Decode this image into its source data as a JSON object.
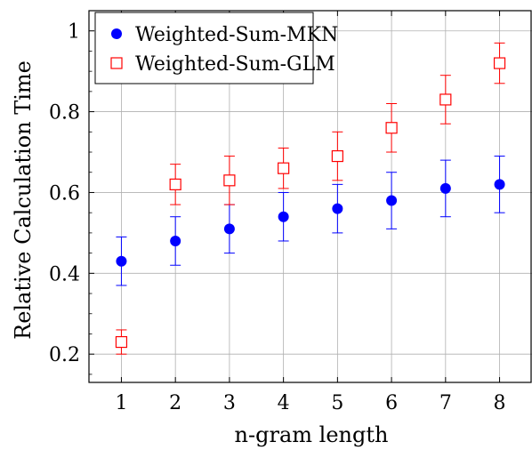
{
  "chart_data": {
    "type": "scatter",
    "xlabel": "n-gram length",
    "ylabel": "Relative Calculation Time",
    "xlim": [
      0.4,
      8.6
    ],
    "ylim": [
      0.13,
      1.05
    ],
    "x_ticks": [
      1,
      2,
      3,
      4,
      5,
      6,
      7,
      8
    ],
    "y_ticks": [
      0.2,
      0.4,
      0.6,
      0.8,
      1
    ],
    "y_tick_labels": [
      "0.2",
      "0.4",
      "0.6",
      "0.8",
      "1"
    ],
    "y_minor_ticks": [
      0.15,
      0.25,
      0.3,
      0.35,
      0.45,
      0.5,
      0.55,
      0.65,
      0.7,
      0.75,
      0.85,
      0.9,
      0.95,
      1.05
    ],
    "grid": true,
    "legend_position": "top-left",
    "series": [
      {
        "name": "Weighted-Sum-MKN",
        "marker": "filled-circle",
        "color": "#0000ff",
        "x": [
          1,
          2,
          3,
          4,
          5,
          6,
          7,
          8
        ],
        "y": [
          0.43,
          0.48,
          0.51,
          0.54,
          0.56,
          0.58,
          0.61,
          0.62
        ],
        "err_low": [
          0.37,
          0.42,
          0.45,
          0.48,
          0.5,
          0.51,
          0.54,
          0.55
        ],
        "err_high": [
          0.49,
          0.54,
          0.57,
          0.6,
          0.62,
          0.65,
          0.68,
          0.69
        ]
      },
      {
        "name": "Weighted-Sum-GLM",
        "marker": "open-square",
        "color": "#ff0000",
        "x": [
          1,
          2,
          3,
          4,
          5,
          6,
          7,
          8
        ],
        "y": [
          0.23,
          0.62,
          0.63,
          0.66,
          0.69,
          0.76,
          0.83,
          0.92
        ],
        "err_low": [
          0.2,
          0.57,
          0.57,
          0.61,
          0.63,
          0.7,
          0.77,
          0.87
        ],
        "err_high": [
          0.26,
          0.67,
          0.69,
          0.71,
          0.75,
          0.82,
          0.89,
          0.97
        ]
      }
    ]
  }
}
